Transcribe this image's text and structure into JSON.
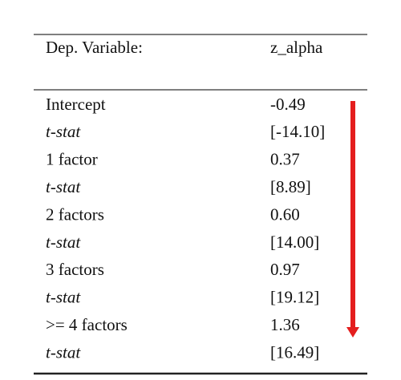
{
  "table": {
    "header": [
      "Dep. Variable:",
      "z_alpha"
    ],
    "rows": [
      [
        "Intercept",
        "-0.49"
      ],
      [
        "t-stat",
        "[-14.10]"
      ],
      [
        "1 factor",
        "0.37"
      ],
      [
        "t-stat",
        "[8.89]"
      ],
      [
        "2 factors",
        "0.60"
      ],
      [
        "t-stat",
        "[14.00]"
      ],
      [
        "3 factors",
        "0.97"
      ],
      [
        "t-stat",
        "[19.12]"
      ],
      [
        ">= 4 factors",
        "1.36"
      ],
      [
        "t-stat",
        "[16.49]"
      ]
    ]
  }
}
